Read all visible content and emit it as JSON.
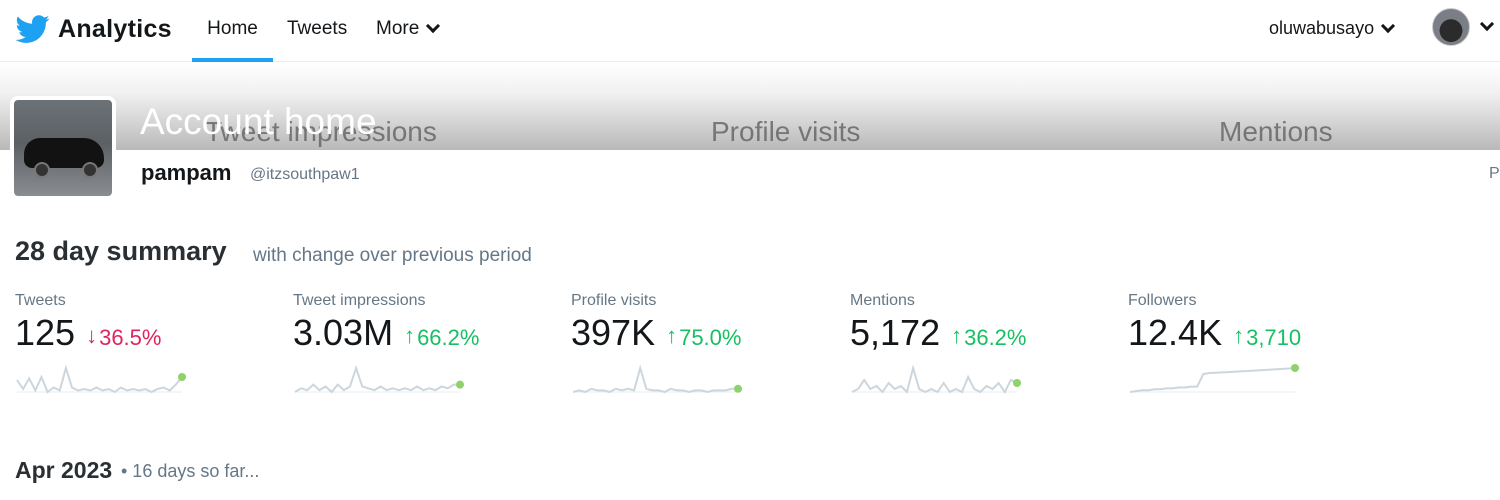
{
  "nav": {
    "brand": "Analytics",
    "brand_icon": "twitter-bird-icon",
    "brand_color": "#1da1f2",
    "items": [
      {
        "label": "Home",
        "active": true
      },
      {
        "label": "Tweets"
      },
      {
        "label": "More"
      }
    ],
    "username": "oluwabusayo"
  },
  "banner": {
    "title": "Account home",
    "faded_labels": [
      "Tweet impressions",
      "Profile visits",
      "Mentions"
    ]
  },
  "profile": {
    "name": "pampam",
    "handle": "@itzsouthpaw1",
    "edge_text": "P"
  },
  "summary": {
    "title": "28 day summary",
    "subtitle": "with change over previous period",
    "metrics": [
      {
        "label": "Tweets",
        "value": "125",
        "direction": "down",
        "arrow": "↓",
        "change": "36.5%",
        "sparkline": [
          18,
          12,
          19,
          11,
          20,
          10,
          13,
          11,
          26,
          13,
          11,
          12,
          11,
          13,
          11,
          12,
          10,
          13,
          11,
          12,
          11,
          12,
          10,
          12,
          13,
          11,
          15,
          20
        ]
      },
      {
        "label": "Tweet impressions",
        "value": "3.03M",
        "direction": "up",
        "arrow": "↑",
        "change": "66.2%",
        "sparkline": [
          9,
          11,
          10,
          13,
          10,
          12,
          9,
          13,
          10,
          12,
          22,
          12,
          11,
          10,
          12,
          10,
          11,
          10,
          11,
          10,
          12,
          10,
          11,
          10,
          12,
          11,
          13,
          13
        ]
      },
      {
        "label": "Profile visits",
        "value": "397K",
        "direction": "up",
        "arrow": "↑",
        "change": "75.0%",
        "sparkline": [
          9,
          10,
          9,
          11,
          10,
          10,
          9,
          11,
          10,
          11,
          10,
          24,
          11,
          10,
          10,
          9,
          11,
          10,
          10,
          9,
          10,
          10,
          9,
          10,
          10,
          10,
          11,
          11
        ]
      },
      {
        "label": "Mentions",
        "value": "5,172",
        "direction": "up",
        "arrow": "↑",
        "change": "36.2%",
        "sparkline": [
          9,
          10,
          13,
          10,
          11,
          9,
          12,
          10,
          11,
          9,
          17,
          10,
          9,
          10,
          9,
          12,
          9,
          10,
          9,
          14,
          10,
          9,
          11,
          10,
          12,
          9,
          13,
          12
        ]
      },
      {
        "label": "Followers",
        "value": "12.4K",
        "direction": "up",
        "arrow": "↑",
        "change": "3,710",
        "sparkline": [
          8,
          8.5,
          9,
          9,
          9.5,
          9.5,
          10,
          10,
          10.5,
          10.5,
          11,
          11,
          18,
          18.5,
          18.7,
          18.9,
          19,
          19.2,
          19.4,
          19.6,
          19.8,
          20,
          20.2,
          20.4,
          20.6,
          20.8,
          21,
          21.3
        ]
      }
    ]
  },
  "month": {
    "title": "Apr 2023",
    "subtitle": "• 16 days so far..."
  },
  "colors": {
    "up": "#17bf63",
    "down": "#e0245e",
    "sparkline": "#ccd6dd",
    "sparkline_dot": "#8fd16a"
  }
}
